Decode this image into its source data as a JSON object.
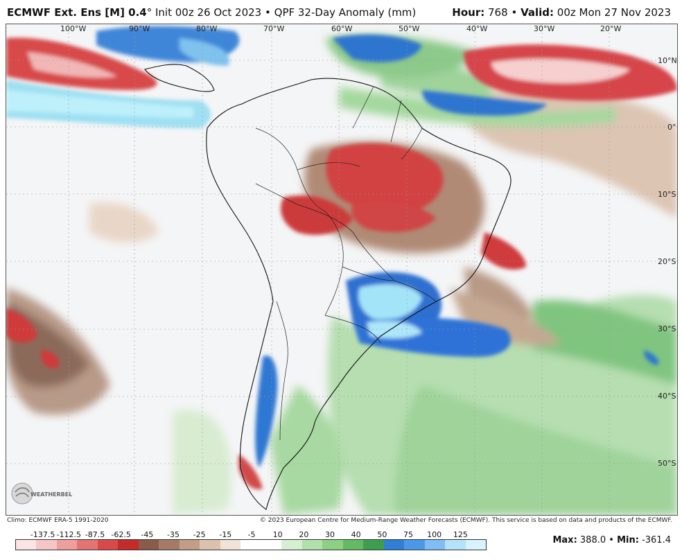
{
  "header": {
    "model": "ECMWF Ext. Ens [M] 0.4",
    "degree": "°",
    "init": "Init 00z 26 Oct 2023",
    "bullet": "•",
    "product": "QPF 32-Day Anomaly (mm)",
    "hour_label": "Hour:",
    "hour_value": "768",
    "valid_label": "Valid:",
    "valid_value": "00z Mon 27 Nov 2023"
  },
  "map": {
    "lon_labels": [
      "100°W",
      "90°W",
      "80°W",
      "70°W",
      "60°W",
      "50°W",
      "40°W",
      "30°W",
      "20°W"
    ],
    "lat_labels": [
      "10°N",
      "0°",
      "10°S",
      "20°S",
      "30°S",
      "40°S",
      "50°S"
    ],
    "logo_text": "WEATHERBELL"
  },
  "footer": {
    "climo": "Climo: ECMWF ERA-5 1991-2020",
    "copyright": "© 2023 European Centre for Medium-Range Weather Forecasts (ECMWF). This service is based on data and products of the ECMWF."
  },
  "colorbar": {
    "labels": [
      "-137.5",
      "-112.5",
      "-87.5",
      "-62.5",
      "-45",
      "-35",
      "-25",
      "-15",
      "-5",
      "10",
      "20",
      "30",
      "40",
      "50",
      "75",
      "100",
      "125"
    ],
    "colors": [
      "#fbe4e4",
      "#f5c6c6",
      "#ee9e9e",
      "#e47474",
      "#d84a4a",
      "#c42b2b",
      "#8a5a4a",
      "#a57a66",
      "#c39d86",
      "#dcc2ae",
      "#efe2d6",
      "#ffffff",
      "#ffffff",
      "#d6efd2",
      "#b2e0aa",
      "#8ccf85",
      "#63b964",
      "#3e9e4e",
      "#2f7fd6",
      "#4c98e8",
      "#7fbdf2",
      "#b3e2fa",
      "#d8f3fd"
    ]
  },
  "stats": {
    "max_label": "Max:",
    "max_value": "388.0",
    "sep": "•",
    "min_label": "Min:",
    "min_value": "-361.4"
  }
}
